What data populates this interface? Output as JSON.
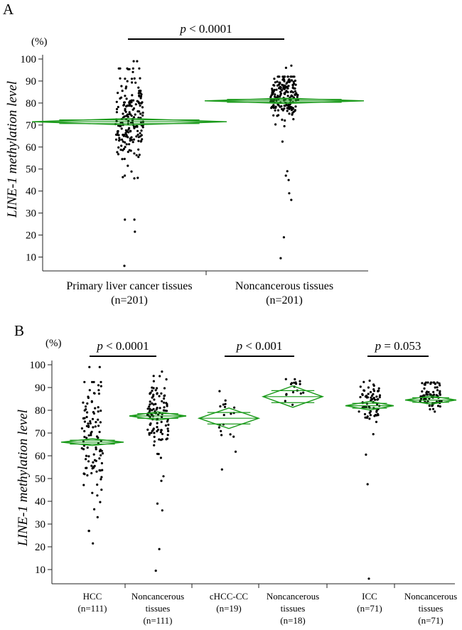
{
  "chart_data": [
    {
      "type": "scatter",
      "panel_label": "A",
      "unit_label": "(%)",
      "ylabel_italic": "LINE-1",
      "ylabel_rest": " methylation level",
      "ylim": [
        5,
        100
      ],
      "yticks": [
        10,
        20,
        30,
        40,
        50,
        60,
        70,
        80,
        90,
        100
      ],
      "groups": [
        {
          "name": "Primary liver cancer tissues",
          "n": "(n=201)",
          "mean": 71.5,
          "ci": [
            70.0,
            73.0
          ],
          "spread": 11,
          "count": 201,
          "seed": 11,
          "outliers": [
            99,
            99,
            27,
            27,
            21.5,
            6,
            46,
            47
          ]
        },
        {
          "name": "Noncancerous tissues",
          "n": "(n=201)",
          "mean": 81,
          "ci": [
            79.8,
            82.2
          ],
          "spread": 5,
          "count": 201,
          "seed": 23,
          "outliers": [
            97,
            96,
            49,
            47,
            45,
            39,
            36,
            19,
            9.5,
            62.5
          ]
        }
      ],
      "comparisons": [
        {
          "label_italic": "p",
          "label_rest": " < 0.0001",
          "groups": [
            0,
            1
          ]
        }
      ]
    },
    {
      "type": "scatter",
      "panel_label": "B",
      "unit_label": "(%)",
      "ylabel_italic": "LINE-1",
      "ylabel_rest": " methylation level",
      "ylim": [
        5,
        100
      ],
      "yticks": [
        10,
        20,
        30,
        40,
        50,
        60,
        70,
        80,
        90,
        100
      ],
      "groups": [
        {
          "name": "HCC",
          "name2": "",
          "n": "(n=111)",
          "mean": 66,
          "ci": [
            64.5,
            67.5
          ],
          "spread": 12,
          "count": 111,
          "seed": 37,
          "outliers": [
            99,
            99,
            27,
            27,
            21.5,
            36.5,
            33
          ]
        },
        {
          "name": "Noncancerous",
          "name2": "tissues",
          "n": "(n=111)",
          "mean": 77.5,
          "ci": [
            75.7,
            79.3
          ],
          "spread": 8,
          "count": 111,
          "seed": 41,
          "outliers": [
            97,
            95,
            51,
            49,
            39,
            36,
            19,
            9.5
          ]
        },
        {
          "name": "cHCC-CC",
          "name2": "",
          "n": "(n=19)",
          "mean": 76.5,
          "ci": [
            72,
            81
          ],
          "spread": 7,
          "count": 19,
          "seed": 53,
          "outliers": [
            54
          ]
        },
        {
          "name": "Noncancerous",
          "name2": "tissues",
          "n": "(n=18)",
          "mean": 86,
          "ci": [
            81.3,
            90.7
          ],
          "spread": 3.5,
          "count": 18,
          "seed": 59,
          "outliers": []
        },
        {
          "name": "ICC",
          "name2": "",
          "n": "(n=71)",
          "mean": 82,
          "ci": [
            80.1,
            83.9
          ],
          "spread": 5,
          "count": 71,
          "seed": 61,
          "outliers": [
            69.5,
            60.5,
            47.5,
            6
          ]
        },
        {
          "name": "Noncancerous",
          "name2": "tissues",
          "n": "(n=71)",
          "mean": 84.5,
          "ci": [
            82.7,
            86.3
          ],
          "spread": 3.5,
          "count": 71,
          "seed": 67,
          "outliers": []
        }
      ],
      "comparisons": [
        {
          "label_italic": "p",
          "label_rest": " < 0.0001",
          "groups": [
            0,
            1
          ]
        },
        {
          "label_italic": "p",
          "label_rest": " < 0.001",
          "groups": [
            2,
            3
          ]
        },
        {
          "label_italic": "p",
          "label_rest": " = 0.053",
          "groups": [
            4,
            5
          ]
        }
      ]
    }
  ]
}
